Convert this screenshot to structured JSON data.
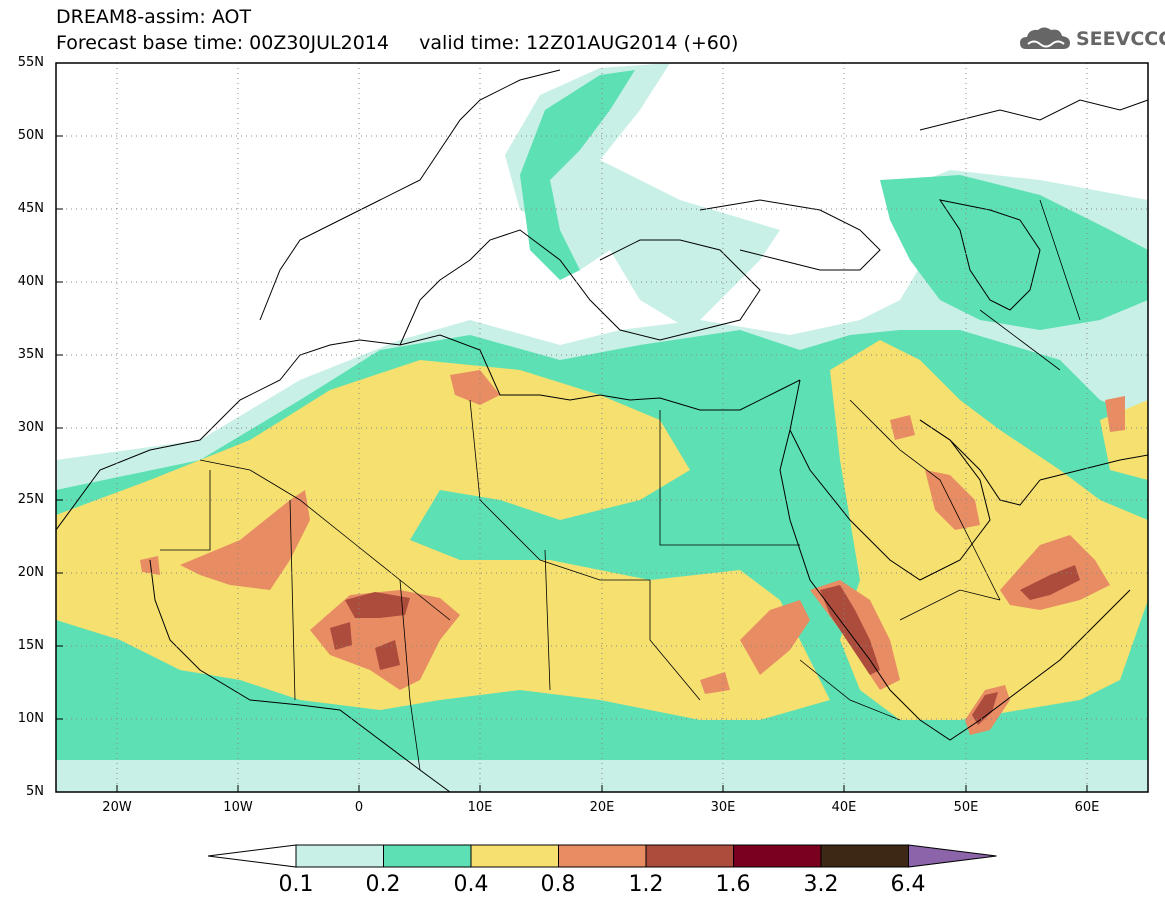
{
  "title": {
    "line1": "DREAM8-assim: AOT",
    "line2": "Forecast base time: 00Z30JUL2014     valid time: 12Z01AUG2014 (+60)"
  },
  "logo": {
    "text": "SEEVCCC",
    "icon": "cloud-logo-icon"
  },
  "map": {
    "lat_labels": [
      "55N",
      "50N",
      "45N",
      "40N",
      "35N",
      "30N",
      "25N",
      "20N",
      "15N",
      "10N",
      "5N"
    ],
    "lon_labels": [
      "20W",
      "10W",
      "0",
      "10E",
      "20E",
      "30E",
      "40E",
      "50E",
      "60E"
    ],
    "lon_range": [
      -25,
      65
    ],
    "lat_range": [
      5,
      55
    ]
  },
  "colorbar": {
    "labels": [
      "0.1",
      "0.2",
      "0.4",
      "0.8",
      "1.2",
      "1.6",
      "3.2",
      "6.4"
    ],
    "colors": [
      "#ffffff",
      "#c8f0e6",
      "#5ce0b4",
      "#f5e070",
      "#e88c64",
      "#ac4c3c",
      "#78001e",
      "#3c2814",
      "#8c64aa"
    ]
  }
}
